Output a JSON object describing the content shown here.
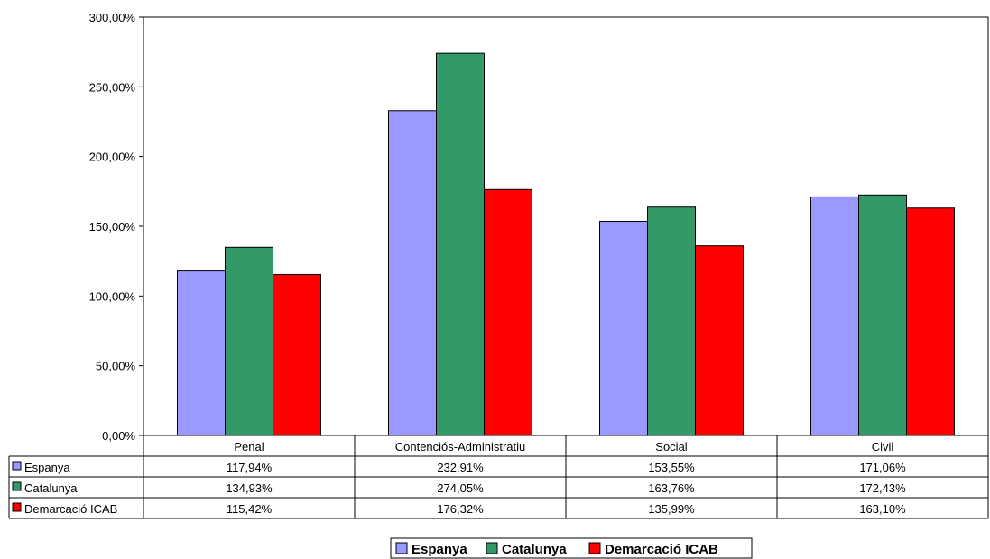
{
  "chart_data": {
    "type": "bar",
    "categories": [
      "Penal",
      "Contenciós-Administratiu",
      "Social",
      "Civil"
    ],
    "series": [
      {
        "name": "Espanya",
        "values": [
          117.94,
          232.91,
          153.55,
          171.06
        ],
        "labels": [
          "117,94%",
          "232,91%",
          "153,55%",
          "171,06%"
        ]
      },
      {
        "name": "Catalunya",
        "values": [
          134.93,
          274.05,
          163.76,
          172.43
        ],
        "labels": [
          "134,93%",
          "274,05%",
          "163,76%",
          "172,43%"
        ]
      },
      {
        "name": "Demarcació ICAB",
        "values": [
          115.42,
          176.32,
          135.99,
          163.1
        ],
        "labels": [
          "115,42%",
          "176,32%",
          "135,99%",
          "163,10%"
        ]
      }
    ],
    "yticks": [
      "0,00%",
      "50,00%",
      "100,00%",
      "150,00%",
      "200,00%",
      "250,00%",
      "300,00%"
    ],
    "ylim": [
      0,
      300
    ],
    "grid": false,
    "legend_position": "bottom",
    "data_table": true,
    "colors": [
      "#9999ff",
      "#339966",
      "#ff0000"
    ]
  }
}
